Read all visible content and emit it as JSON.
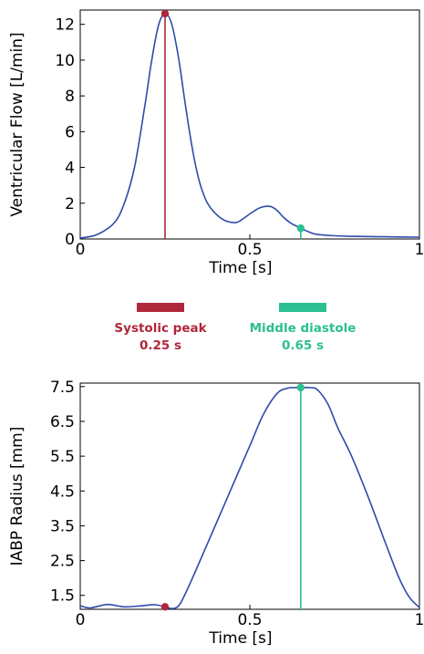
{
  "colors": {
    "curve": "#2e4ba8",
    "systolic": "#b0263a",
    "diastole": "#2bbf92",
    "axis": "#000000",
    "grid": "#e6e6e6"
  },
  "legend": {
    "systolic": {
      "name": "Systolic peak",
      "time": "0.25 s"
    },
    "diastole": {
      "name": "Middle diastole",
      "time": "0.65 s"
    }
  },
  "chart_data": [
    {
      "type": "line",
      "xlabel": "Time [s]",
      "ylabel": "Ventricular Flow [L/min]",
      "xlim": [
        0,
        1
      ],
      "ylim": [
        0,
        12.8
      ],
      "xticks": [
        0,
        0.5,
        1
      ],
      "xtick_labels": [
        "0",
        "0.5",
        "1"
      ],
      "yticks": [
        0,
        2,
        4,
        6,
        8,
        10,
        12
      ],
      "ytick_labels": [
        "0",
        "2",
        "4",
        "6",
        "8",
        "10",
        "12"
      ],
      "grid": false,
      "x": [
        0,
        0.05,
        0.1,
        0.13,
        0.16,
        0.19,
        0.21,
        0.23,
        0.25,
        0.27,
        0.29,
        0.31,
        0.33,
        0.35,
        0.37,
        0.39,
        0.42,
        0.45,
        0.47,
        0.5,
        0.53,
        0.56,
        0.58,
        0.6,
        0.62,
        0.65,
        0.68,
        0.7,
        0.75,
        0.8,
        0.9,
        1.0
      ],
      "y": [
        0.05,
        0.25,
        0.9,
        2.0,
        4.0,
        7.4,
        9.9,
        11.9,
        12.6,
        12.0,
        10.1,
        7.5,
        5.1,
        3.3,
        2.2,
        1.6,
        1.1,
        0.92,
        1.0,
        1.4,
        1.75,
        1.82,
        1.6,
        1.2,
        0.9,
        0.6,
        0.35,
        0.25,
        0.18,
        0.15,
        0.12,
        0.1
      ],
      "markers": [
        {
          "x": 0.25,
          "y": 12.6,
          "label": "Systolic peak"
        },
        {
          "x": 0.65,
          "y": 0.6,
          "label": "Middle diastole"
        }
      ]
    },
    {
      "type": "line",
      "xlabel": "Time [s]",
      "ylabel": "IABP Radius [mm]",
      "xlim": [
        0,
        1
      ],
      "ylim": [
        1.1,
        7.6
      ],
      "xticks": [
        0,
        0.5,
        1
      ],
      "xtick_labels": [
        "0",
        "0.5",
        "1"
      ],
      "yticks": [
        1.5,
        2.5,
        3.5,
        4.5,
        5.5,
        6.5,
        7.5
      ],
      "ytick_labels": [
        "1.5",
        "2.5",
        "3.5",
        "4.5",
        "5.5",
        "6.5",
        "7.5"
      ],
      "grid": false,
      "x": [
        0,
        0.03,
        0.08,
        0.13,
        0.18,
        0.22,
        0.25,
        0.27,
        0.29,
        0.31,
        0.34,
        0.38,
        0.42,
        0.46,
        0.5,
        0.54,
        0.58,
        0.61,
        0.63,
        0.65,
        0.68,
        0.7,
        0.73,
        0.76,
        0.8,
        0.85,
        0.9,
        0.94,
        0.97,
        1.0
      ],
      "y": [
        1.2,
        1.14,
        1.24,
        1.17,
        1.2,
        1.23,
        1.17,
        1.12,
        1.2,
        1.55,
        2.2,
        3.1,
        4.0,
        4.9,
        5.8,
        6.7,
        7.3,
        7.45,
        7.47,
        7.47,
        7.47,
        7.4,
        7.0,
        6.3,
        5.5,
        4.3,
        3.0,
        2.0,
        1.45,
        1.15
      ],
      "markers": [
        {
          "x": 0.25,
          "y": 1.17,
          "label": "Systolic peak"
        },
        {
          "x": 0.65,
          "y": 7.47,
          "label": "Middle diastole"
        }
      ]
    }
  ]
}
